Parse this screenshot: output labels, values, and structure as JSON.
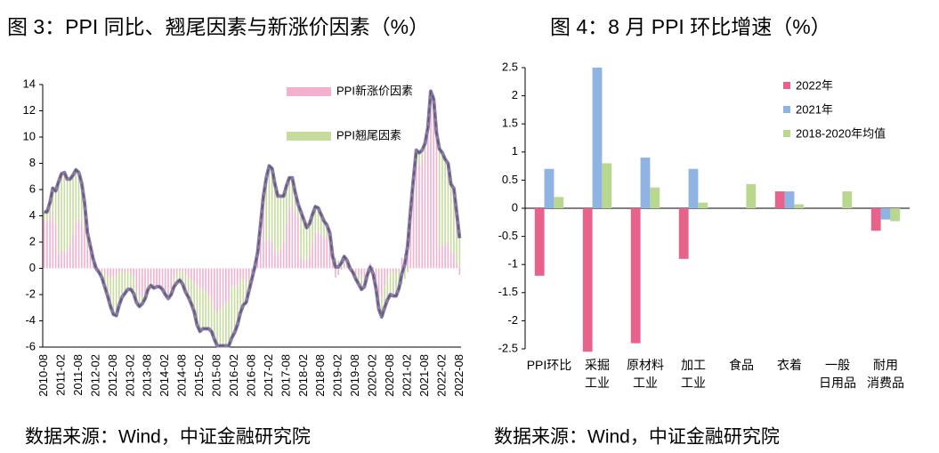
{
  "chart_data": [
    {
      "type": "bar",
      "title": "图 3：PPI 同比、翘尾因素与新涨价因素（%）",
      "source": "数据来源：Wind，中证金融研究院",
      "stacked": true,
      "legend": "upper right",
      "categories": [
        "2010-08",
        null,
        null,
        null,
        null,
        null,
        "2011-02",
        null,
        null,
        null,
        null,
        null,
        "2011-08",
        null,
        null,
        null,
        null,
        null,
        "2012-02",
        null,
        null,
        null,
        null,
        null,
        "2012-08",
        null,
        null,
        null,
        null,
        null,
        "2013-02",
        null,
        null,
        null,
        null,
        null,
        "2013-08",
        null,
        null,
        null,
        null,
        null,
        "2014-02",
        null,
        null,
        null,
        null,
        null,
        "2014-08",
        null,
        null,
        null,
        null,
        null,
        "2015-02",
        null,
        null,
        null,
        null,
        null,
        "2015-08",
        null,
        null,
        null,
        null,
        null,
        "2016-02",
        null,
        null,
        null,
        null,
        null,
        "2016-08",
        null,
        null,
        null,
        null,
        null,
        "2017-02",
        null,
        null,
        null,
        null,
        null,
        "2017-08",
        null,
        null,
        null,
        null,
        null,
        "2018-02",
        null,
        null,
        null,
        null,
        null,
        "2018-08",
        null,
        null,
        null,
        null,
        null,
        "2019-02",
        null,
        null,
        null,
        null,
        null,
        "2019-08",
        null,
        null,
        null,
        null,
        null,
        "2020-02",
        null,
        null,
        null,
        null,
        null,
        "2020-08",
        null,
        null,
        null,
        null,
        null,
        "2021-02",
        null,
        null,
        null,
        null,
        null,
        "2021-08",
        null,
        null,
        null,
        null,
        null,
        "2022-02",
        null,
        null,
        null,
        null,
        null,
        "2022-08"
      ],
      "series": [
        {
          "name": "PPI新涨价因素",
          "color": "#f4b0cf",
          "values": [
            3.8,
            3.5,
            3.8,
            4.3,
            3.4,
            1.1,
            1.4,
            1.3,
            1.3,
            1.8,
            2.6,
            3.5,
            3.8,
            3.5,
            3.0,
            1.7,
            1.2,
            0.2,
            -0.2,
            -0.1,
            -0.2,
            -0.4,
            -0.6,
            -0.7,
            -0.7,
            -0.6,
            -0.3,
            -0.2,
            -0.4,
            -0.1,
            -0.4,
            -0.7,
            -1.6,
            -2.1,
            -2.1,
            -1.8,
            -1.2,
            -1.0,
            -1.3,
            -1.3,
            -1.4,
            -1.4,
            -1.7,
            -1.9,
            -1.5,
            -0.8,
            -0.4,
            -0.1,
            -0.2,
            -0.6,
            -0.7,
            -0.9,
            -1.1,
            -1.3,
            -1.6,
            -1.6,
            -1.8,
            -2.1,
            -2.5,
            -3.2,
            -3.4,
            -3.1,
            -2.9,
            -2.6,
            -2.4,
            -1.3,
            -1.4,
            -1.3,
            -0.9,
            -0.8,
            -1.1,
            -0.7,
            -0.3,
            0.1,
            0.9,
            2.7,
            4.5,
            1.9,
            2.3,
            2.1,
            1.4,
            1.0,
            1.5,
            2.0,
            3.3,
            4.4,
            4.9,
            4.3,
            3.9,
            0.8,
            0.7,
            0.6,
            1.1,
            1.9,
            2.7,
            2.8,
            2.6,
            2.4,
            2.4,
            2.1,
            0.6,
            -0.7,
            -0.5,
            -0.1,
            0.4,
            0.3,
            0.0,
            0.0,
            -0.3,
            -0.5,
            -0.8,
            -0.6,
            0.0,
            0.4,
            0.1,
            -0.7,
            -1.9,
            -2.2,
            -1.3,
            -0.6,
            -0.2,
            -0.3,
            -0.4,
            0.0,
            0.8,
            1.1,
            2.0,
            3.9,
            5.8,
            7.8,
            7.8,
            8.2,
            9.0,
            10.4,
            13.4,
            12.9,
            10.3,
            1.6,
            1.8,
            1.8,
            2.0,
            1.2,
            1.3,
            0.4,
            -0.5
          ]
        },
        {
          "name": "PPI翘尾因素",
          "color": "#c5dc9e",
          "values": [
            0.5,
            0.8,
            1.2,
            1.8,
            2.5,
            5.5,
            5.8,
            6.0,
            5.5,
            5.0,
            4.5,
            4.0,
            3.5,
            3.0,
            2.0,
            1.0,
            0.5,
            0.5,
            0.2,
            -0.2,
            -0.5,
            -1.0,
            -1.5,
            -2.2,
            -2.8,
            -3.0,
            -2.5,
            -2.0,
            -1.5,
            -1.5,
            -1.2,
            -1.2,
            -1.0,
            -0.8,
            -0.6,
            -0.5,
            -0.4,
            -0.3,
            -0.2,
            -0.1,
            0.0,
            -0.2,
            -0.3,
            -0.4,
            -0.5,
            -0.6,
            -0.7,
            -0.8,
            -1.0,
            -1.2,
            -1.5,
            -1.8,
            -2.2,
            -3.0,
            -3.2,
            -3.0,
            -2.8,
            -2.5,
            -2.3,
            -2.2,
            -2.5,
            -2.8,
            -3.0,
            -3.3,
            -3.5,
            -4.0,
            -3.5,
            -3.0,
            -2.5,
            -2.0,
            -1.5,
            -1.0,
            -0.5,
            0.0,
            0.3,
            0.6,
            1.0,
            5.0,
            5.5,
            5.5,
            5.0,
            4.5,
            4.0,
            3.5,
            3.0,
            2.5,
            2.0,
            1.5,
            1.0,
            3.5,
            3.0,
            2.5,
            2.3,
            2.2,
            2.0,
            1.8,
            1.5,
            1.2,
            0.9,
            0.6,
            0.3,
            0.8,
            0.6,
            0.5,
            0.5,
            0.3,
            0.0,
            -0.3,
            -0.5,
            -0.7,
            -0.8,
            -0.8,
            -0.5,
            -0.3,
            -0.5,
            -0.8,
            -1.2,
            -1.5,
            -1.7,
            -1.8,
            -1.8,
            -1.8,
            -1.7,
            -1.5,
            -1.2,
            -0.8,
            -0.3,
            0.5,
            1.0,
            1.2,
            1.0,
            0.8,
            0.5,
            0.3,
            0.1,
            0.0,
            0.0,
            7.5,
            7.0,
            6.5,
            6.0,
            5.2,
            4.8,
            3.8,
            2.8
          ]
        },
        {
          "type": "line",
          "color": "#8a7aa6",
          "values": [
            4.3,
            4.3,
            5.0,
            6.1,
            5.9,
            6.6,
            7.2,
            7.3,
            6.8,
            6.8,
            7.1,
            7.5,
            7.3,
            6.5,
            5.0,
            2.7,
            1.7,
            0.7,
            0.0,
            -0.3,
            -0.7,
            -1.4,
            -2.1,
            -2.9,
            -3.5,
            -3.6,
            -2.8,
            -2.2,
            -1.9,
            -1.6,
            -1.6,
            -1.9,
            -2.6,
            -2.9,
            -2.7,
            -2.3,
            -1.6,
            -1.3,
            -1.5,
            -1.4,
            -1.4,
            -1.6,
            -2.0,
            -2.3,
            -2.0,
            -1.4,
            -1.1,
            -0.9,
            -1.2,
            -1.8,
            -2.2,
            -2.7,
            -3.3,
            -4.3,
            -4.8,
            -4.6,
            -4.6,
            -4.6,
            -4.8,
            -5.4,
            -5.9,
            -5.9,
            -5.9,
            -5.9,
            -5.9,
            -5.3,
            -4.9,
            -4.3,
            -3.4,
            -2.8,
            -2.6,
            -1.7,
            -0.8,
            0.1,
            1.2,
            3.3,
            5.5,
            6.9,
            7.8,
            7.6,
            6.4,
            5.5,
            5.5,
            5.5,
            6.3,
            6.9,
            6.9,
            5.8,
            4.9,
            4.3,
            3.7,
            3.1,
            3.4,
            4.1,
            4.7,
            4.6,
            4.1,
            3.6,
            3.3,
            2.7,
            0.9,
            0.1,
            0.1,
            0.4,
            0.9,
            0.6,
            0.0,
            -0.3,
            -0.8,
            -1.2,
            -1.6,
            -1.4,
            -0.5,
            0.1,
            -0.4,
            -1.5,
            -3.1,
            -3.7,
            -3.0,
            -2.4,
            -2.0,
            -2.1,
            -2.1,
            -1.5,
            -0.4,
            0.3,
            1.7,
            4.4,
            6.8,
            9.0,
            8.8,
            9.0,
            9.5,
            10.7,
            13.5,
            12.9,
            10.3,
            9.1,
            8.8,
            8.3,
            8.0,
            6.4,
            6.1,
            4.2,
            2.3
          ]
        }
      ],
      "ylim": [
        -6,
        14
      ],
      "yticks": [
        -6,
        -4,
        -2,
        0,
        2,
        4,
        6,
        8,
        10,
        12,
        14
      ]
    },
    {
      "type": "bar",
      "title": "图 4：8 月 PPI 环比增速（%）",
      "source": "数据来源：Wind，中证金融研究院",
      "stacked": false,
      "legend": "upper right",
      "categories": [
        "PPI环比",
        "采掘\n工业",
        "原材料\n工业",
        "加工\n工业",
        "食品",
        "衣着",
        "一般\n日用品",
        "耐用\n消费品"
      ],
      "series": [
        {
          "name": "2022年",
          "color": "#e8628c",
          "values": [
            -1.2,
            -2.55,
            -2.4,
            -0.9,
            0,
            0.3,
            0,
            -0.4
          ]
        },
        {
          "name": "2021年",
          "color": "#8fb4e3",
          "values": [
            0.7,
            2.5,
            0.9,
            0.7,
            0,
            0.3,
            0,
            -0.2
          ]
        },
        {
          "name": "2018-2020年均值",
          "color": "#b9d88f",
          "values": [
            0.2,
            0.8,
            0.37,
            0.1,
            0.43,
            0.07,
            0.3,
            -0.23
          ]
        }
      ],
      "ylim": [
        -2.5,
        2.5
      ],
      "yticks": [
        -2.5,
        -2,
        -1.5,
        -1,
        -0.5,
        0,
        0.5,
        1,
        1.5,
        2,
        2.5
      ]
    }
  ]
}
